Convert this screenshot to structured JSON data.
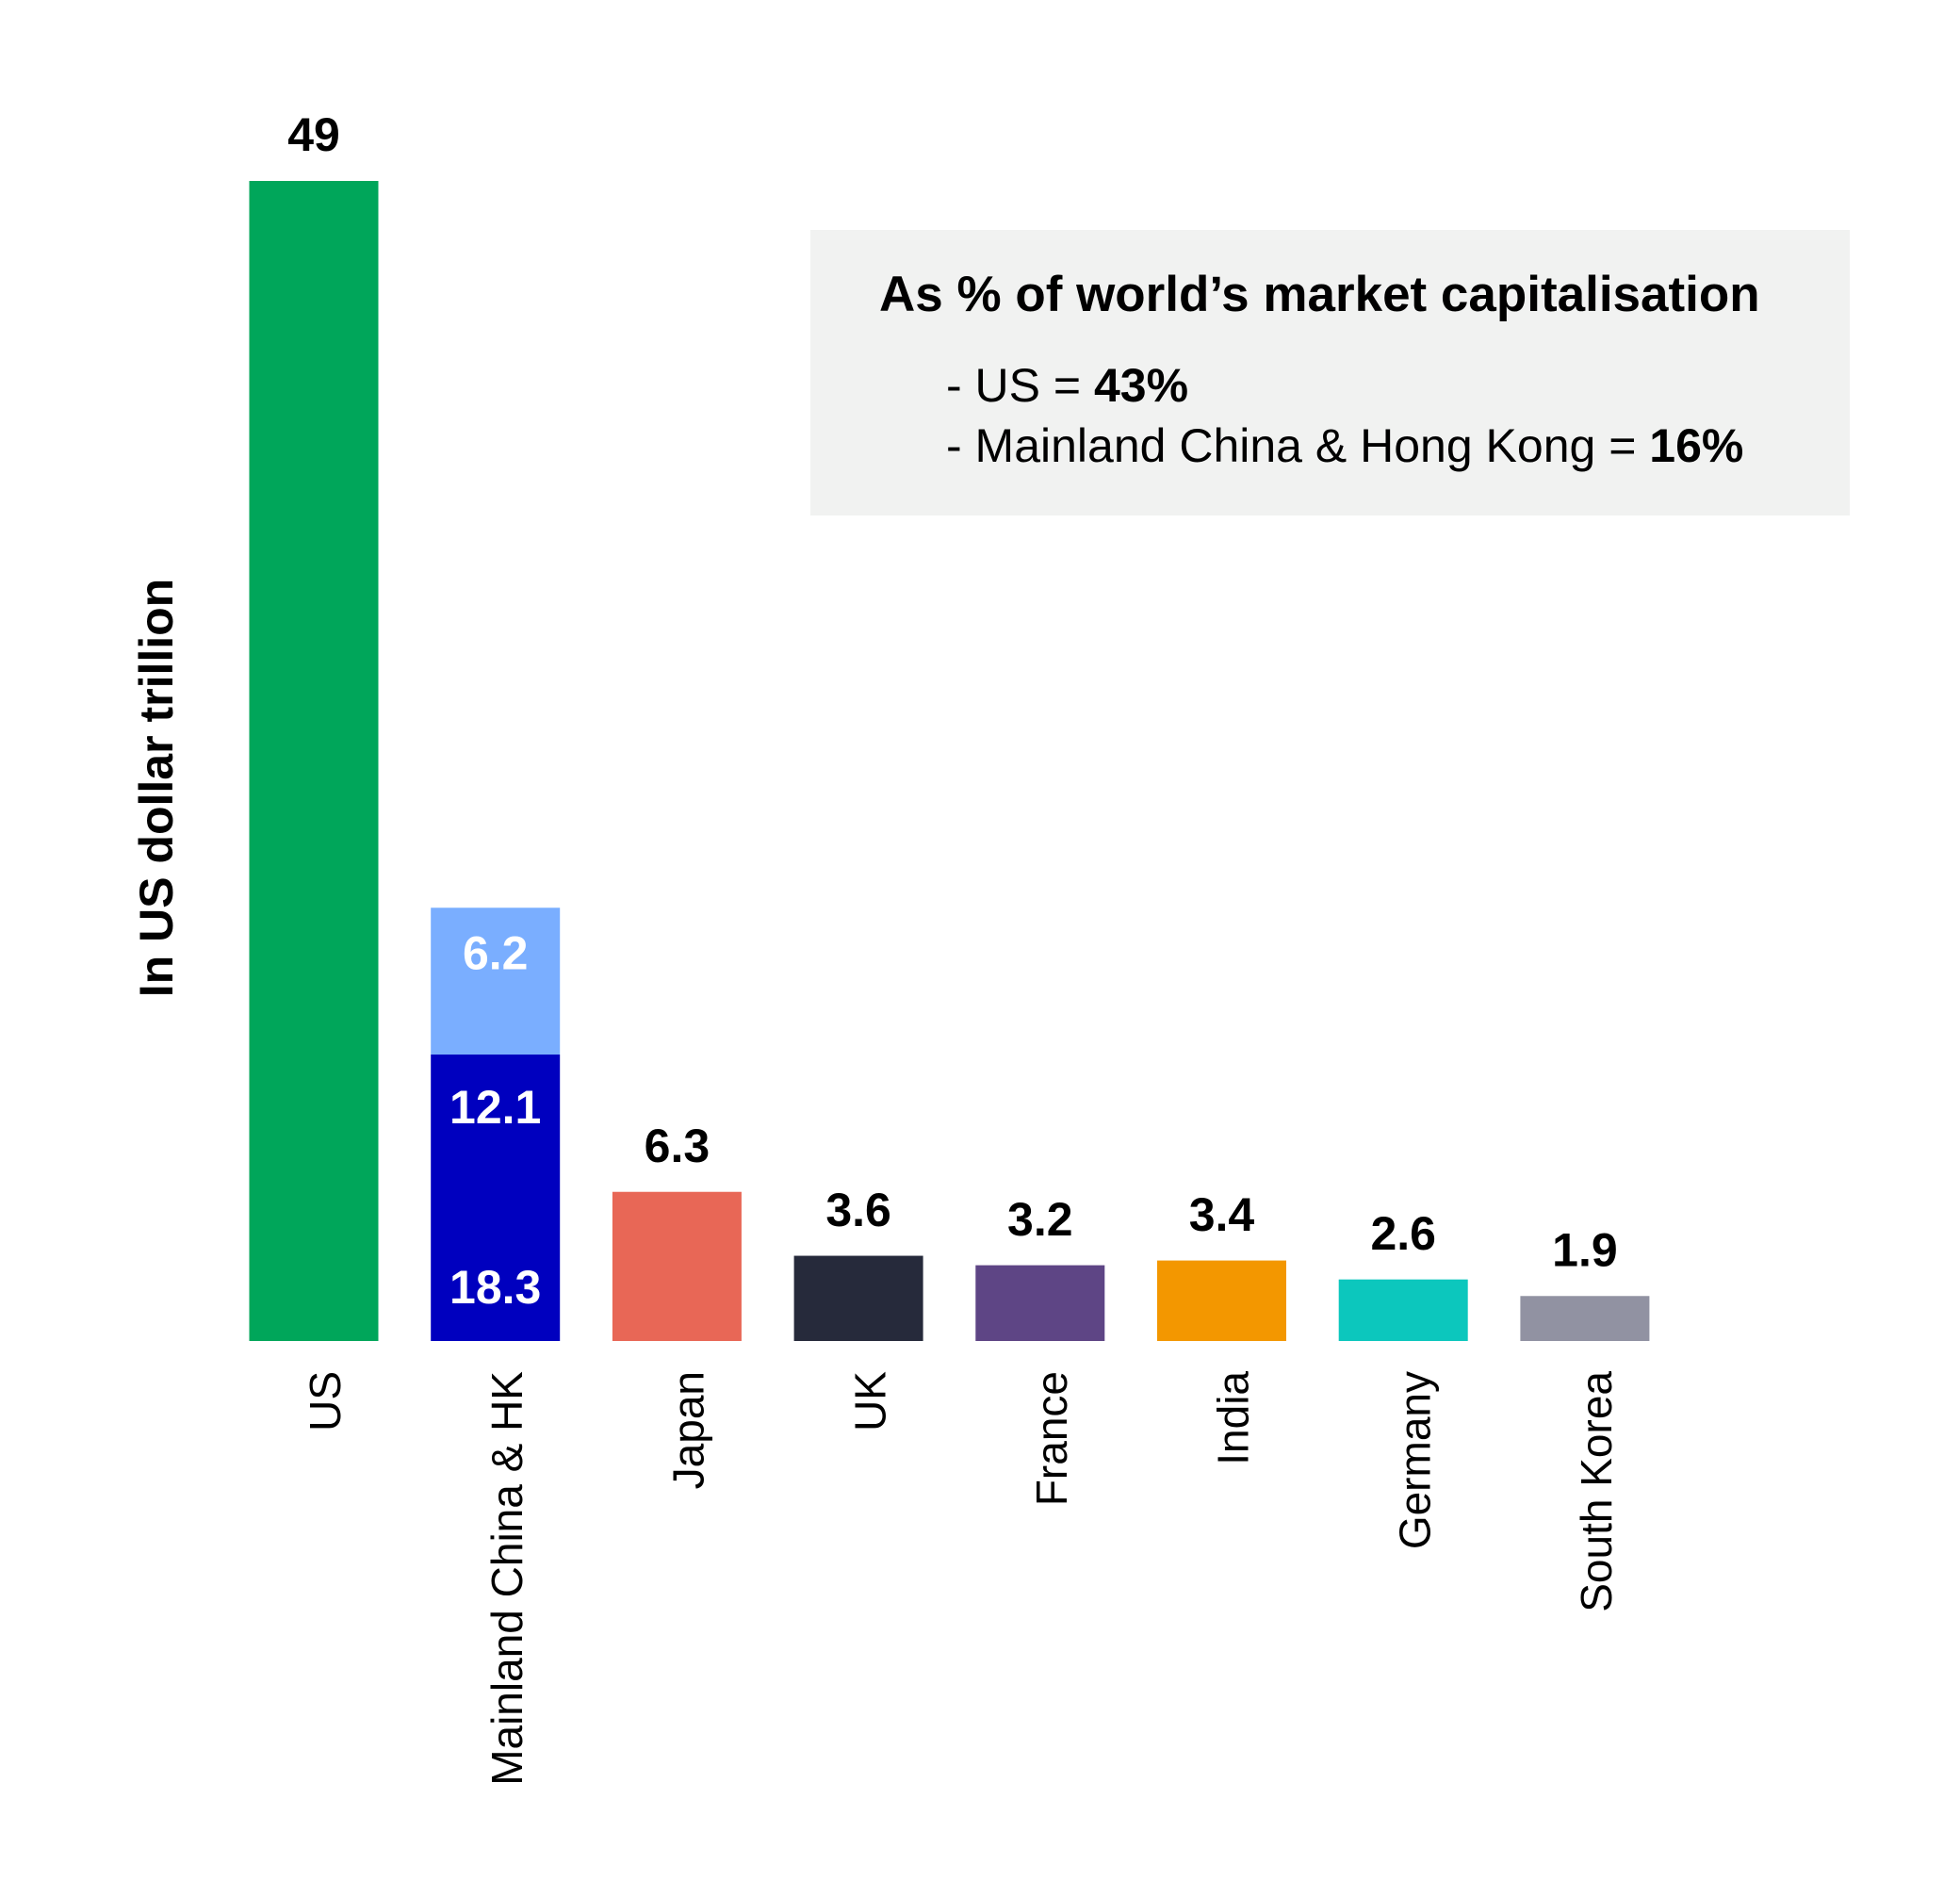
{
  "chart_data": {
    "type": "bar",
    "y_label": "In US dollar trillion",
    "categories": [
      "US",
      "Mainland China & HK",
      "Japan",
      "UK",
      "France",
      "India",
      "Germany",
      "South Korea"
    ],
    "values": [
      49,
      12.1,
      6.3,
      3.6,
      3.2,
      3.4,
      2.6,
      1.9
    ],
    "colors": [
      "#00a65a",
      "#0000bf",
      "#e86756",
      "#262a3b",
      "#5e4585",
      "#f39700",
      "#0cc7bd",
      "#9192a2"
    ],
    "upper_values": [
      null,
      6.2,
      null,
      null,
      null,
      null,
      null,
      null
    ],
    "upper_color": "#7aaeff",
    "totals": [
      null,
      18.3,
      null,
      null,
      null,
      null,
      null,
      null
    ],
    "ylim": [
      0,
      49
    ],
    "annotation": {
      "title": "As % of world’s market capitalisation",
      "lines": [
        {
          "text": "- US =",
          "value": "43%"
        },
        {
          "text": "- Mainland China & Hong Kong =",
          "value": "16%"
        }
      ]
    }
  }
}
